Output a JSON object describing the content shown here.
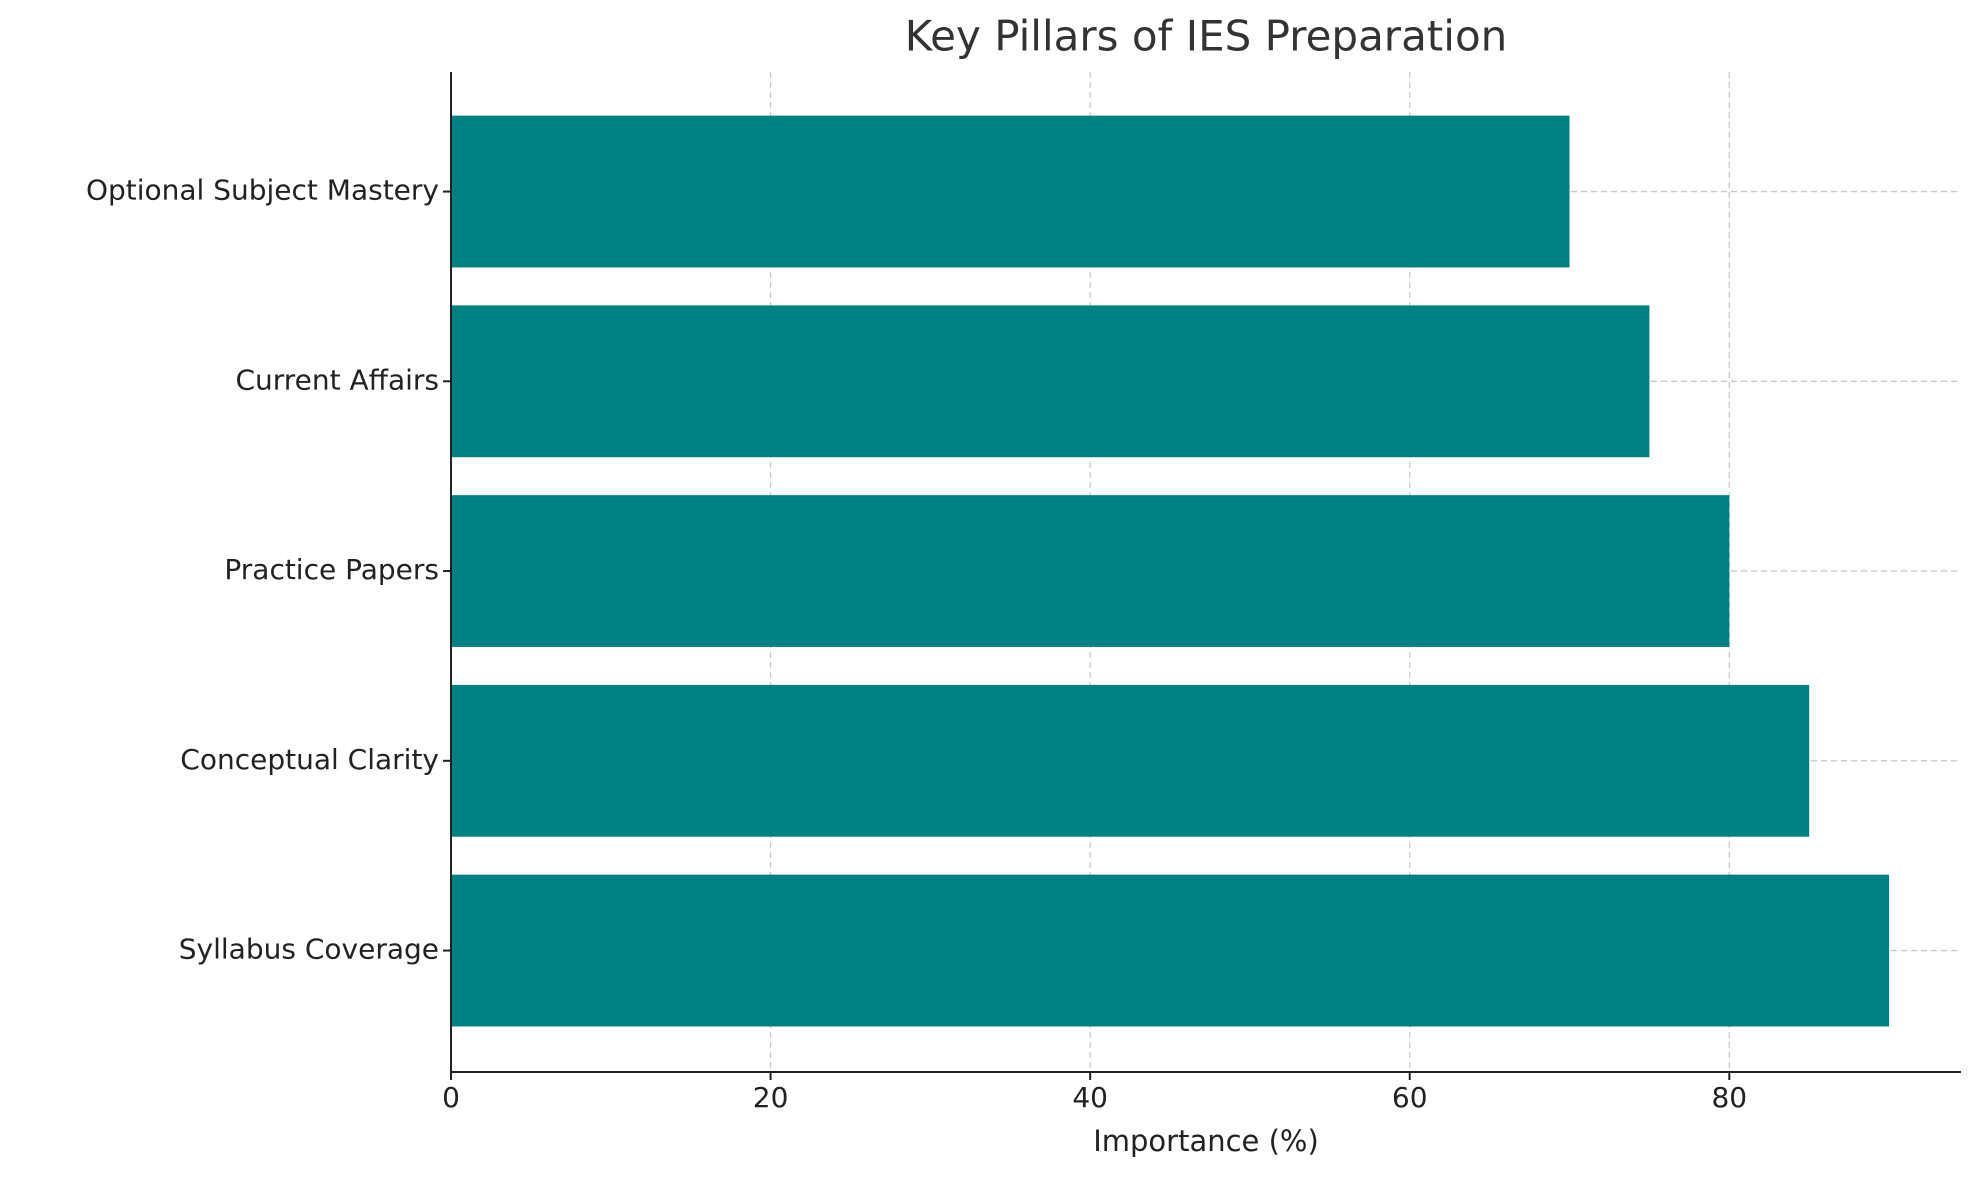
{
  "chart_data": {
    "type": "barh",
    "title": "Key Pillars of IES Preparation",
    "xlabel": "Importance (%)",
    "categories": [
      "Syllabus Coverage",
      "Conceptual Clarity",
      "Practice Papers",
      "Current Affairs",
      "Optional Subject Mastery"
    ],
    "values": [
      90,
      85,
      80,
      75,
      70
    ],
    "color": "#008080",
    "xlim": [
      0,
      94.5
    ],
    "xticks": [
      0,
      20,
      40,
      60,
      80
    ],
    "grid": true
  }
}
